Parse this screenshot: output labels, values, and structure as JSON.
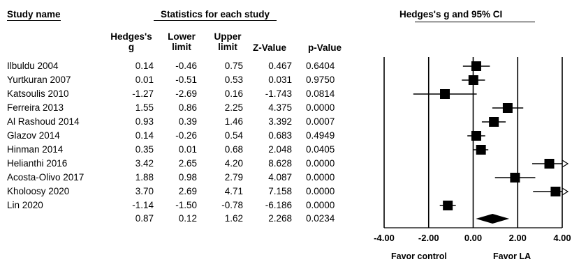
{
  "headers": {
    "study_name": "Study name",
    "stats_title": "Statistics for each study",
    "plot_title": "Hedges's g and 95% CI",
    "col_g_line1": "Hedges's",
    "col_g_line2": "g",
    "col_lower_line1": "Lower",
    "col_lower_line2": "limit",
    "col_upper_line1": "Upper",
    "col_upper_line2": "limit",
    "col_z": "Z-Value",
    "col_p": "p-Value"
  },
  "rows": [
    {
      "study": "Ilbuldu 2004",
      "g": "0.14",
      "lower": "-0.46",
      "upper": "0.75",
      "z": "0.467",
      "p": "0.6404"
    },
    {
      "study": "Yurtkuran 2007",
      "g": "0.01",
      "lower": "-0.51",
      "upper": "0.53",
      "z": "0.031",
      "p": "0.9750"
    },
    {
      "study": "Katsoulis 2010",
      "g": "-1.27",
      "lower": "-2.69",
      "upper": "0.16",
      "z": "-1.743",
      "p": "0.0814"
    },
    {
      "study": "Ferreira 2013",
      "g": "1.55",
      "lower": "0.86",
      "upper": "2.25",
      "z": "4.375",
      "p": "0.0000"
    },
    {
      "study": "Al Rashoud 2014",
      "g": "0.93",
      "lower": "0.39",
      "upper": "1.46",
      "z": "3.392",
      "p": "0.0007"
    },
    {
      "study": "Glazov 2014",
      "g": "0.14",
      "lower": "-0.26",
      "upper": "0.54",
      "z": "0.683",
      "p": "0.4949"
    },
    {
      "study": "Hinman 2014",
      "g": "0.35",
      "lower": "0.01",
      "upper": "0.68",
      "z": "2.048",
      "p": "0.0405"
    },
    {
      "study": "Helianthi 2016",
      "g": "3.42",
      "lower": "2.65",
      "upper": "4.20",
      "z": "8.628",
      "p": "0.0000"
    },
    {
      "study": "Acosta-Olivo 2017",
      "g": "1.88",
      "lower": "0.98",
      "upper": "2.79",
      "z": "4.087",
      "p": "0.0000"
    },
    {
      "study": "Kholoosy 2020",
      "g": "3.70",
      "lower": "2.69",
      "upper": "4.71",
      "z": "7.158",
      "p": "0.0000"
    },
    {
      "study": "Lin 2020",
      "g": "-1.14",
      "lower": "-1.50",
      "upper": "-0.78",
      "z": "-6.186",
      "p": "0.0000"
    }
  ],
  "summary": {
    "study": "",
    "g": "0.87",
    "lower": "0.12",
    "upper": "1.62",
    "z": "2.268",
    "p": "0.0234"
  },
  "footer": {
    "favor_control": "Favor control",
    "favor_la": "Favor LA"
  },
  "chart_data": {
    "type": "forest",
    "title": "Hedges's g and 95% CI",
    "xlim": [
      -4,
      4
    ],
    "x_ticks": [
      "-4.00",
      "-2.00",
      "0.00",
      "2.00",
      "4.00"
    ],
    "x_tick_values": [
      -4,
      -2,
      0,
      2,
      4
    ],
    "left_label": "Favor control",
    "right_label": "Favor LA",
    "studies": [
      {
        "name": "Ilbuldu 2004",
        "g": 0.14,
        "lower": -0.46,
        "upper": 0.75
      },
      {
        "name": "Yurtkuran 2007",
        "g": 0.01,
        "lower": -0.51,
        "upper": 0.53
      },
      {
        "name": "Katsoulis 2010",
        "g": -1.27,
        "lower": -2.69,
        "upper": 0.16
      },
      {
        "name": "Ferreira 2013",
        "g": 1.55,
        "lower": 0.86,
        "upper": 2.25
      },
      {
        "name": "Al Rashoud 2014",
        "g": 0.93,
        "lower": 0.39,
        "upper": 1.46
      },
      {
        "name": "Glazov 2014",
        "g": 0.14,
        "lower": -0.26,
        "upper": 0.54
      },
      {
        "name": "Hinman 2014",
        "g": 0.35,
        "lower": 0.01,
        "upper": 0.68
      },
      {
        "name": "Helianthi 2016",
        "g": 3.42,
        "lower": 2.65,
        "upper": 4.2
      },
      {
        "name": "Acosta-Olivo 2017",
        "g": 1.88,
        "lower": 0.98,
        "upper": 2.79
      },
      {
        "name": "Kholoosy 2020",
        "g": 3.7,
        "lower": 2.69,
        "upper": 4.71
      },
      {
        "name": "Lin 2020",
        "g": -1.14,
        "lower": -1.5,
        "upper": -0.78
      }
    ],
    "summary": {
      "g": 0.87,
      "lower": 0.12,
      "upper": 1.62
    }
  }
}
